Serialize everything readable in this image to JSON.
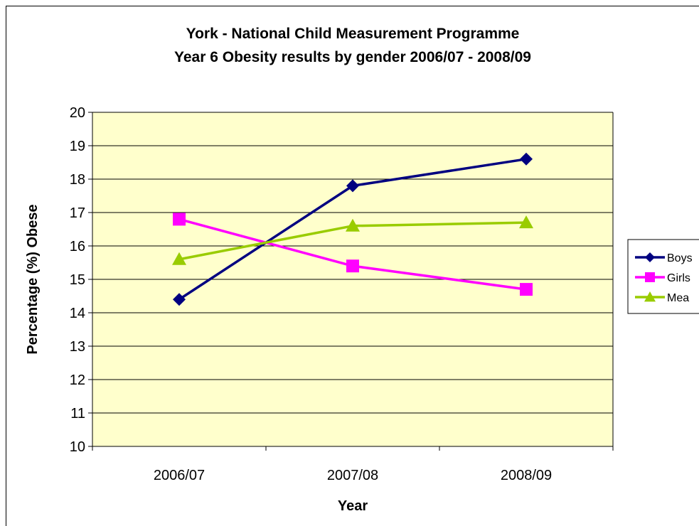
{
  "chart_data": {
    "type": "line",
    "title_lines": [
      "York - National Child Measurement Programme",
      "Year 6 Obesity results by gender 2006/07 - 2008/09"
    ],
    "xlabel": "Year",
    "ylabel": "Percentage (%) Obese",
    "categories": [
      "2006/07",
      "2007/08",
      "2008/09"
    ],
    "ylim": [
      10,
      20
    ],
    "yticks": [
      10,
      11,
      12,
      13,
      14,
      15,
      16,
      17,
      18,
      19,
      20
    ],
    "grid": true,
    "legend_position": "right",
    "plot_background": "#FFFFCC",
    "series": [
      {
        "name": "Boys",
        "legend_label": "Boys",
        "values": [
          14.4,
          17.8,
          18.6
        ],
        "color": "#000080",
        "marker": "diamond"
      },
      {
        "name": "Girls",
        "legend_label": "Girls",
        "values": [
          16.8,
          15.4,
          14.7
        ],
        "color": "#FF00FF",
        "marker": "square"
      },
      {
        "name": "Mean",
        "legend_label": "Mea",
        "values": [
          15.6,
          16.6,
          16.7
        ],
        "color": "#99CC00",
        "marker": "triangle"
      }
    ]
  }
}
